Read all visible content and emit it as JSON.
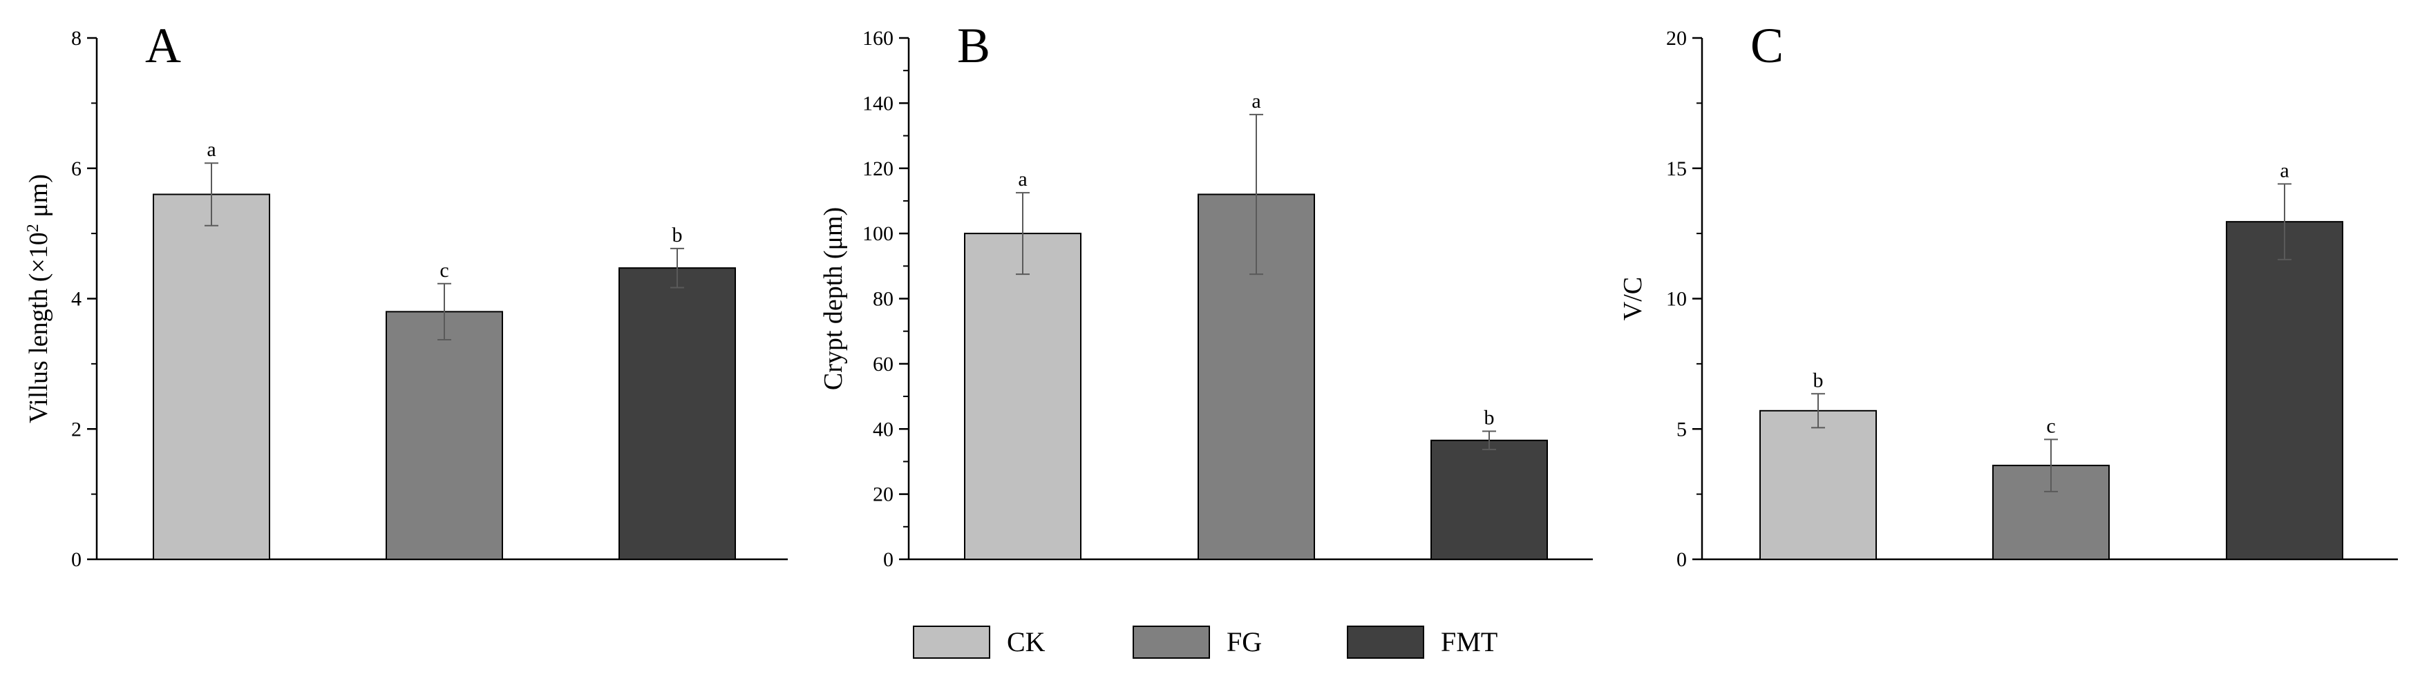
{
  "colors": {
    "CK": "#c0c0c0",
    "FG": "#808080",
    "FMT": "#404040",
    "axis": "#000000",
    "error": "#5a5a5a"
  },
  "legend": {
    "items": [
      {
        "key": "CK",
        "label": "CK"
      },
      {
        "key": "FG",
        "label": "FG"
      },
      {
        "key": "FMT",
        "label": "FMT"
      }
    ]
  },
  "chart_data": [
    {
      "type": "bar",
      "panel": "A",
      "ylabel_main": "Villus length (×10",
      "ylabel_sup": "2",
      "ylabel_tail": " μm)",
      "ylim": [
        0,
        8
      ],
      "yticks": [
        0,
        2,
        4,
        6,
        8
      ],
      "yticks_labels": [
        "0",
        "2",
        "4",
        "6",
        "8"
      ],
      "categories": [
        "CK",
        "FG",
        "FMT"
      ],
      "values": [
        5.6,
        3.8,
        4.47
      ],
      "errors": [
        0.48,
        0.43,
        0.3
      ],
      "significance": [
        "a",
        "c",
        "b"
      ]
    },
    {
      "type": "bar",
      "panel": "B",
      "ylabel_main": "Crypt depth (μm)",
      "ylabel_sup": "",
      "ylabel_tail": "",
      "ylim": [
        0,
        160
      ],
      "yticks": [
        0,
        20,
        40,
        60,
        80,
        100,
        120,
        140,
        160
      ],
      "yticks_labels": [
        "0",
        "20",
        "40",
        "60",
        "80",
        "100",
        "120",
        "140",
        "160"
      ],
      "categories": [
        "CK",
        "FG",
        "FMT"
      ],
      "values": [
        100,
        112,
        36.5
      ],
      "errors": [
        12.5,
        24.5,
        2.8
      ],
      "significance": [
        "a",
        "a",
        "b"
      ]
    },
    {
      "type": "bar",
      "panel": "C",
      "ylabel_main": "V/C",
      "ylabel_sup": "",
      "ylabel_tail": "",
      "ylim": [
        0,
        20
      ],
      "yticks": [
        0,
        5,
        10,
        15,
        20
      ],
      "yticks_labels": [
        "0",
        "5",
        "10",
        "15",
        "20"
      ],
      "categories": [
        "CK",
        "FG",
        "FMT"
      ],
      "values": [
        5.7,
        3.6,
        12.95
      ],
      "errors": [
        0.65,
        1.0,
        1.45
      ],
      "significance": [
        "b",
        "c",
        "a"
      ]
    }
  ]
}
